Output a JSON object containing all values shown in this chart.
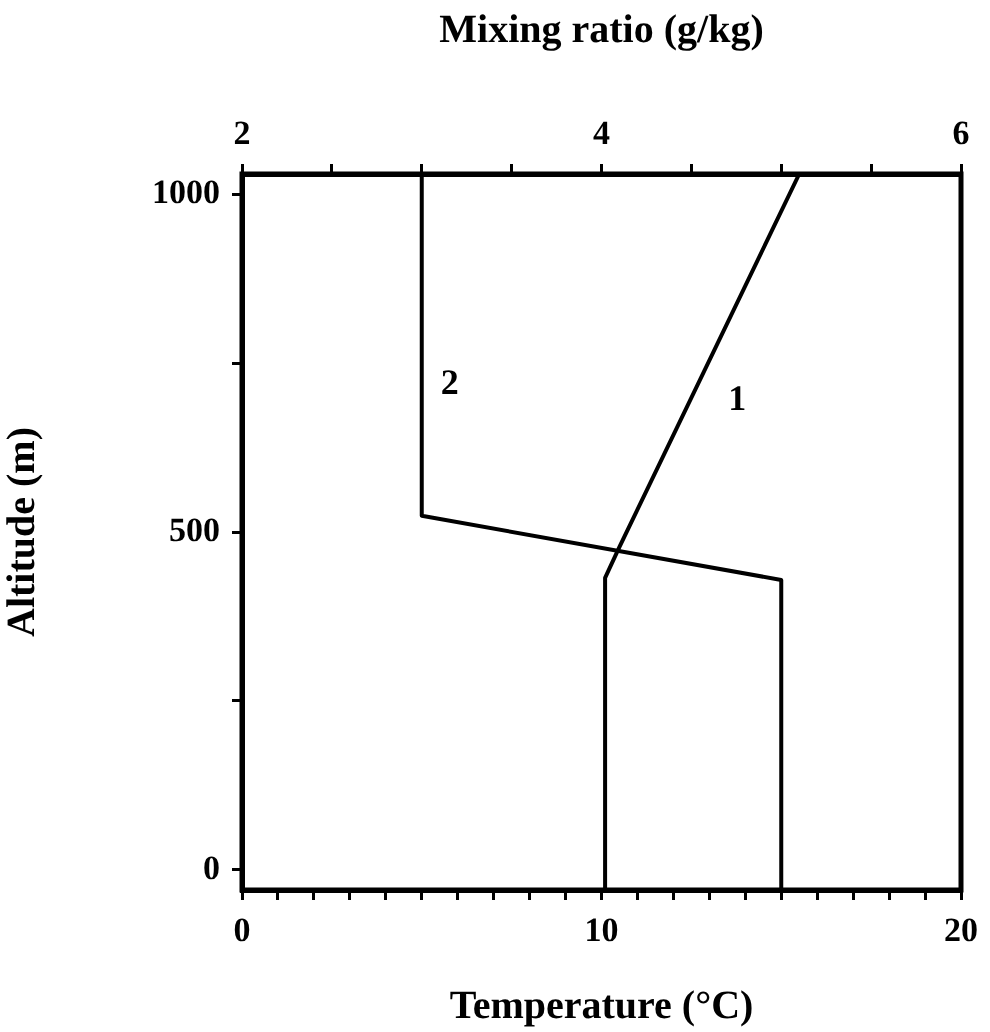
{
  "chart_data": {
    "type": "line",
    "xlabel": "Temperature (°C)",
    "x2label": "Mixing ratio (g/kg)",
    "ylabel": "Altitude (m)",
    "xlim": [
      0,
      20
    ],
    "xticks": [
      0,
      {
        "value": 1,
        "label": null
      },
      {
        "value": 2,
        "label": null
      },
      {
        "value": 3,
        "label": null
      },
      {
        "value": 4,
        "label": null
      },
      {
        "value": 5,
        "label": null
      },
      {
        "value": 6,
        "label": null
      },
      {
        "value": 7,
        "label": null
      },
      {
        "value": 8,
        "label": null
      },
      {
        "value": 9,
        "label": null
      },
      10,
      {
        "value": 11,
        "label": null
      },
      {
        "value": 12,
        "label": null
      },
      {
        "value": 13,
        "label": null
      },
      {
        "value": 14,
        "label": null
      },
      {
        "value": 15,
        "label": null
      },
      {
        "value": 16,
        "label": null
      },
      {
        "value": 17,
        "label": null
      },
      {
        "value": 18,
        "label": null
      },
      {
        "value": 19,
        "label": null
      },
      20
    ],
    "x2lim": [
      2,
      6
    ],
    "x2ticks": [
      2,
      {
        "value": 2.5,
        "label": null
      },
      {
        "value": 3,
        "label": null
      },
      {
        "value": 3.5,
        "label": null
      },
      4,
      {
        "value": 4.5,
        "label": null
      },
      {
        "value": 5,
        "label": null
      },
      {
        "value": 5.5,
        "label": null
      },
      6
    ],
    "ylim": [
      -30,
      1030
    ],
    "yticks": [
      0,
      {
        "value": 250,
        "label": null
      },
      500,
      {
        "value": 750,
        "label": null
      },
      1000
    ],
    "series": [
      {
        "name": "1",
        "color": "#000000",
        "x": [
          10.1,
          10.1,
          10.5,
          15.5
        ],
        "values": [
          -30,
          432,
          478,
          1030
        ]
      },
      {
        "name": "2",
        "color": "#000000",
        "axis": "x2",
        "x": [
          5.0,
          5.0,
          3.0,
          3.0
        ],
        "values": [
          -30,
          429,
          524,
          1030
        ]
      }
    ],
    "grid": false,
    "legend": false,
    "marker": "none",
    "line_style": "solid"
  }
}
